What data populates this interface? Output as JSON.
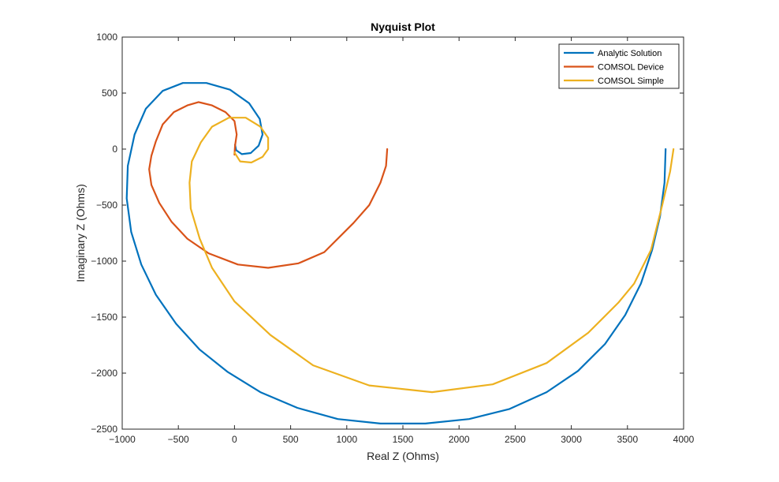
{
  "chart_data": {
    "type": "line",
    "title": "Nyquist Plot",
    "xlabel": "Real Z (Ohms)",
    "ylabel": "Imaginary Z (Ohms)",
    "xlim": [
      -1000,
      4000
    ],
    "ylim": [
      -2500,
      1000
    ],
    "xticks": [
      -1000,
      -500,
      0,
      500,
      1000,
      1500,
      2000,
      2500,
      3000,
      3500,
      4000
    ],
    "yticks": [
      -2500,
      -2000,
      -1500,
      -1000,
      -500,
      0,
      500,
      1000
    ],
    "grid": false,
    "legend_position": "top-right",
    "series": [
      {
        "name": "Analytic Solution",
        "color": "#0072BD",
        "points": [
          [
            3840,
            0
          ],
          [
            3830,
            -300
          ],
          [
            3790,
            -600
          ],
          [
            3720,
            -900
          ],
          [
            3620,
            -1200
          ],
          [
            3480,
            -1480
          ],
          [
            3300,
            -1740
          ],
          [
            3060,
            -1980
          ],
          [
            2780,
            -2170
          ],
          [
            2450,
            -2320
          ],
          [
            2090,
            -2410
          ],
          [
            1700,
            -2450
          ],
          [
            1300,
            -2450
          ],
          [
            920,
            -2410
          ],
          [
            560,
            -2310
          ],
          [
            230,
            -2170
          ],
          [
            -60,
            -1990
          ],
          [
            -310,
            -1790
          ],
          [
            -520,
            -1560
          ],
          [
            -700,
            -1300
          ],
          [
            -830,
            -1030
          ],
          [
            -920,
            -740
          ],
          [
            -960,
            -440
          ],
          [
            -950,
            -150
          ],
          [
            -890,
            130
          ],
          [
            -790,
            360
          ],
          [
            -640,
            520
          ],
          [
            -460,
            590
          ],
          [
            -250,
            590
          ],
          [
            -40,
            530
          ],
          [
            130,
            410
          ],
          [
            225,
            270
          ],
          [
            250,
            130
          ],
          [
            215,
            30
          ],
          [
            145,
            -35
          ],
          [
            65,
            -45
          ],
          [
            15,
            -10
          ],
          [
            5,
            40
          ]
        ]
      },
      {
        "name": "COMSOL Device",
        "color": "#D95319",
        "points": [
          [
            1360,
            0
          ],
          [
            1350,
            -150
          ],
          [
            1300,
            -300
          ],
          [
            1200,
            -500
          ],
          [
            1060,
            -660
          ],
          [
            800,
            -920
          ],
          [
            570,
            -1020
          ],
          [
            300,
            -1060
          ],
          [
            30,
            -1030
          ],
          [
            -230,
            -930
          ],
          [
            -420,
            -800
          ],
          [
            -560,
            -650
          ],
          [
            -670,
            -480
          ],
          [
            -740,
            -320
          ],
          [
            -760,
            -180
          ],
          [
            -740,
            -60
          ],
          [
            -700,
            70
          ],
          [
            -640,
            220
          ],
          [
            -540,
            330
          ],
          [
            -420,
            390
          ],
          [
            -320,
            420
          ],
          [
            -200,
            390
          ],
          [
            -80,
            330
          ],
          [
            0,
            250
          ],
          [
            20,
            130
          ],
          [
            5,
            30
          ],
          [
            0,
            -50
          ]
        ]
      },
      {
        "name": "COMSOL Simple",
        "color": "#EDB120",
        "points": [
          [
            3910,
            0
          ],
          [
            3880,
            -200
          ],
          [
            3810,
            -500
          ],
          [
            3710,
            -900
          ],
          [
            3560,
            -1200
          ],
          [
            3420,
            -1370
          ],
          [
            3150,
            -1640
          ],
          [
            2780,
            -1910
          ],
          [
            2300,
            -2100
          ],
          [
            1760,
            -2170
          ],
          [
            1200,
            -2110
          ],
          [
            700,
            -1930
          ],
          [
            320,
            -1660
          ],
          [
            0,
            -1360
          ],
          [
            -200,
            -1060
          ],
          [
            -310,
            -800
          ],
          [
            -390,
            -530
          ],
          [
            -400,
            -300
          ],
          [
            -380,
            -110
          ],
          [
            -300,
            60
          ],
          [
            -200,
            200
          ],
          [
            -50,
            280
          ],
          [
            100,
            280
          ],
          [
            230,
            200
          ],
          [
            300,
            100
          ],
          [
            300,
            0
          ],
          [
            250,
            -70
          ],
          [
            150,
            -120
          ],
          [
            50,
            -110
          ],
          [
            0,
            -30
          ]
        ]
      }
    ]
  }
}
